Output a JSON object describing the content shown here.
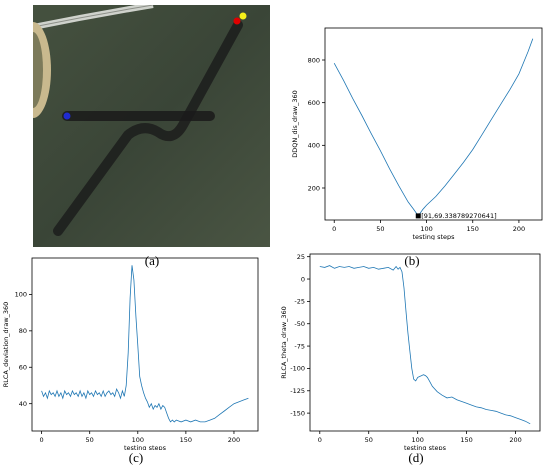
{
  "captions": {
    "a": "(a)",
    "b": "(b)",
    "c": "(c)",
    "d": "(d)"
  },
  "colors": {
    "line": "#1f77b4",
    "grid_none": "#ffffff",
    "aerial_bg": "#3a4436",
    "path": "#222222",
    "start_marker": "#1f2bd0",
    "goal_red": "#e00000",
    "goal_yellow": "#f5ef1a"
  },
  "image_panel": {
    "icons": [
      "aerial-map-image",
      "vehicle-path-track",
      "blue-start-marker",
      "red-goal-marker",
      "yellow-goal-marker"
    ]
  },
  "chart_data": [
    {
      "id": "b",
      "type": "line",
      "xlabel": "testing steps",
      "ylabel": "DDQN_dis_draw_360",
      "xlim": [
        -10,
        225
      ],
      "ylim": [
        50,
        950
      ],
      "xticks": [
        "0",
        "50",
        "100",
        "150",
        "200"
      ],
      "yticks": [
        "200",
        "400",
        "600",
        "800"
      ],
      "ytick_values": [
        200,
        400,
        600,
        800
      ],
      "annotation": {
        "text": "[91,69.338789270641]",
        "x": 91,
        "y": 69.3
      },
      "series": [
        {
          "x": [
            0,
            10,
            20,
            30,
            40,
            50,
            60,
            70,
            80,
            86,
            91,
            96,
            100,
            110,
            120,
            130,
            140,
            150,
            160,
            170,
            180,
            190,
            200,
            210,
            215
          ],
          "y": [
            785,
            705,
            620,
            540,
            455,
            375,
            290,
            210,
            135,
            100,
            69,
            100,
            120,
            160,
            210,
            265,
            320,
            380,
            450,
            520,
            590,
            660,
            735,
            840,
            900
          ]
        }
      ],
      "grid": false
    },
    {
      "id": "c",
      "type": "line",
      "xlabel": "testing steps",
      "ylabel": "RLCA_deviation_draw_360",
      "xlim": [
        -10,
        225
      ],
      "ylim": [
        25,
        120
      ],
      "xticks": [
        "0",
        "50",
        "100",
        "150",
        "200"
      ],
      "yticks": [
        "40",
        "60",
        "80",
        "100"
      ],
      "ytick_values": [
        40,
        60,
        80,
        100
      ],
      "series": [
        {
          "x": [
            0,
            2,
            4,
            6,
            8,
            10,
            12,
            14,
            16,
            18,
            20,
            22,
            24,
            26,
            28,
            30,
            32,
            34,
            36,
            38,
            40,
            42,
            44,
            46,
            48,
            50,
            52,
            54,
            56,
            58,
            60,
            62,
            64,
            66,
            68,
            70,
            72,
            74,
            76,
            78,
            80,
            82,
            84,
            86,
            88,
            90,
            92,
            94,
            96,
            98,
            100,
            102,
            104,
            106,
            108,
            110,
            112,
            114,
            116,
            118,
            120,
            122,
            124,
            126,
            128,
            130,
            132,
            134,
            136,
            138,
            140,
            145,
            150,
            155,
            160,
            165,
            170,
            175,
            180,
            185,
            190,
            195,
            200,
            205,
            210,
            215
          ],
          "y": [
            47,
            44,
            46,
            43,
            47,
            45,
            46,
            44,
            47,
            44,
            46,
            43,
            47,
            45,
            46,
            44,
            47,
            45,
            46,
            44,
            47,
            44,
            46,
            43,
            47,
            45,
            46,
            44,
            47,
            45,
            46,
            44,
            47,
            44,
            46,
            47,
            45,
            46,
            44,
            48,
            46,
            43,
            47,
            44,
            50,
            68,
            98,
            116,
            108,
            88,
            72,
            55,
            50,
            46,
            43,
            41,
            38,
            40,
            37,
            39,
            38,
            40,
            37,
            39,
            38,
            35,
            32,
            30,
            31,
            30,
            31,
            30,
            31,
            30,
            31,
            30,
            30,
            31,
            32,
            34,
            36,
            38,
            40,
            41,
            42,
            43
          ]
        }
      ],
      "grid": false
    },
    {
      "id": "d",
      "type": "line",
      "xlabel": "testing steps",
      "ylabel": "RLCA_theta_draw_360",
      "xlim": [
        -10,
        225
      ],
      "ylim": [
        -170,
        28
      ],
      "xticks": [
        "0",
        "50",
        "100",
        "150",
        "200"
      ],
      "yticks": [
        "25",
        "0",
        "-25",
        "-50",
        "-75",
        "-100",
        "-125",
        "-150"
      ],
      "ytick_values": [
        25,
        0,
        -25,
        -50,
        -75,
        -100,
        -125,
        -150
      ],
      "series": [
        {
          "x": [
            0,
            5,
            10,
            15,
            20,
            25,
            30,
            35,
            40,
            45,
            50,
            55,
            60,
            65,
            70,
            75,
            78,
            80,
            82,
            84,
            86,
            88,
            90,
            92,
            94,
            96,
            98,
            100,
            102,
            104,
            106,
            108,
            110,
            112,
            115,
            120,
            125,
            130,
            135,
            140,
            145,
            150,
            155,
            160,
            165,
            170,
            175,
            180,
            185,
            190,
            195,
            200,
            205,
            210,
            215
          ],
          "y": [
            14,
            13,
            15,
            12,
            14,
            13,
            14,
            12,
            13,
            14,
            12,
            13,
            11,
            12,
            13,
            10,
            14,
            11,
            13,
            8,
            -10,
            -35,
            -60,
            -80,
            -100,
            -112,
            -114,
            -110,
            -109,
            -108,
            -107,
            -108,
            -110,
            -114,
            -120,
            -126,
            -130,
            -133,
            -132,
            -135,
            -137,
            -139,
            -141,
            -143,
            -144,
            -146,
            -147,
            -148,
            -150,
            -152,
            -153,
            -155,
            -157,
            -159,
            -162
          ]
        }
      ],
      "grid": false
    }
  ]
}
